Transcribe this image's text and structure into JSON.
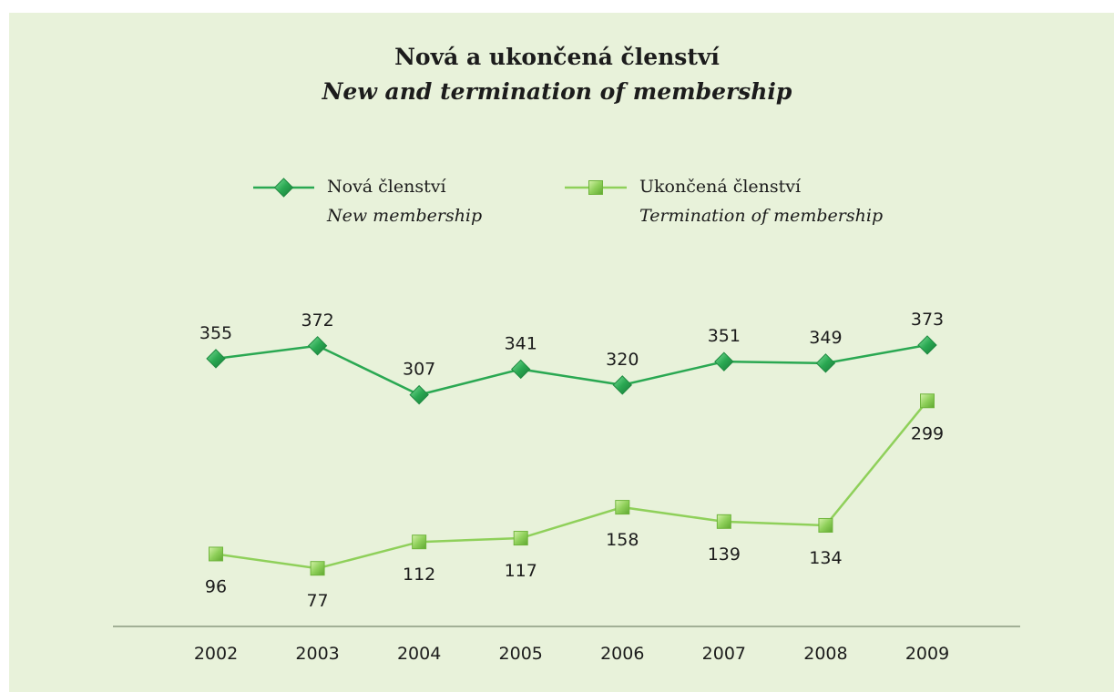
{
  "title": "Nová a ukončená členství",
  "subtitle": "New and termination of membership",
  "legend": [
    {
      "label_cz": "Nová členství",
      "label_en": "New membership",
      "marker": "diamond",
      "color": "#2aa852"
    },
    {
      "label_cz": "Ukončená členství",
      "label_en": "Termination of membership",
      "marker": "square",
      "color": "#8fd05a"
    }
  ],
  "chart_data": {
    "type": "line",
    "title": "Nová a ukončená členství",
    "subtitle": "New and termination of membership",
    "categories": [
      "2002",
      "2003",
      "2004",
      "2005",
      "2006",
      "2007",
      "2008",
      "2009"
    ],
    "series": [
      {
        "name": "Nová členství / New membership",
        "values": [
          355,
          372,
          307,
          341,
          320,
          351,
          349,
          373
        ],
        "color": "#2aa852",
        "marker": "diamond",
        "labels": "above"
      },
      {
        "name": "Ukončená členství / Termination of membership",
        "values": [
          96,
          77,
          112,
          117,
          158,
          139,
          134,
          299
        ],
        "color": "#8fd05a",
        "marker": "square",
        "labels": "below"
      }
    ],
    "ylim": [
      0,
      560
    ],
    "grid": false,
    "legend_position": "top"
  }
}
